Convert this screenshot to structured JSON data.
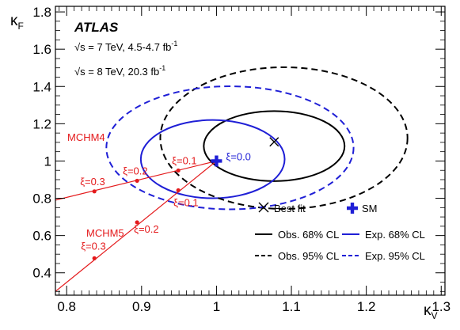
{
  "chart_data": {
    "type": "scatter",
    "title": "",
    "experiment": "ATLAS",
    "energy_lines": [
      {
        "text": "√s = 7 TeV, 4.5-4.7 fb",
        "sup": "-1"
      },
      {
        "text": "√s = 8 TeV, 20.3 fb",
        "sup": "-1"
      }
    ],
    "xlabel": "κ",
    "xlabel_sub": "V",
    "ylabel": "κ",
    "ylabel_sub": "F",
    "xlim": [
      0.785,
      1.305
    ],
    "ylim": [
      0.28,
      1.83
    ],
    "xticks": [
      0.8,
      0.9,
      1.0,
      1.1,
      1.2,
      1.3
    ],
    "xtick_labels": [
      "0.8",
      "0.9",
      "1",
      "1.1",
      "1.2",
      "1.3"
    ],
    "yticks": [
      0.4,
      0.6,
      0.8,
      1.0,
      1.2,
      1.4,
      1.6,
      1.8
    ],
    "ytick_labels": [
      "0.4",
      "0.6",
      "0.8",
      "1",
      "1.2",
      "1.4",
      "1.6",
      "1.8"
    ],
    "grid": false,
    "colors": {
      "observed": "#000000",
      "expected": "#1f1fd6",
      "composite": "#e41a1c"
    },
    "best_fit": {
      "x": 1.077,
      "y": 1.103,
      "label": "Best fit"
    },
    "sm_point": {
      "x": 1.0,
      "y": 1.0,
      "label": "SM",
      "xi_label": "ξ=0.0"
    },
    "contours": [
      {
        "name": "Obs. 68% CL",
        "color": "#000000",
        "dash": "solid",
        "cx": 1.077,
        "cy": 1.08,
        "rx": 0.094,
        "ry": 0.188
      },
      {
        "name": "Exp. 68% CL",
        "color": "#1f1fd6",
        "dash": "solid",
        "cx": 0.995,
        "cy": 1.01,
        "rx": 0.096,
        "ry": 0.21
      },
      {
        "name": "Obs. 95% CL",
        "color": "#000000",
        "dash": "dashed",
        "cx": 1.09,
        "cy": 1.123,
        "rx": 0.165,
        "ry": 0.38
      },
      {
        "name": "Exp. 95% CL",
        "color": "#1f1fd6",
        "dash": "dashed",
        "cx": 1.018,
        "cy": 1.071,
        "rx": 0.165,
        "ry": 0.33
      }
    ],
    "models": [
      {
        "name": "MCHM4",
        "line": [
          [
            0.785,
            0.79
          ],
          [
            1.0,
            1.0
          ]
        ],
        "points": [
          {
            "x": 0.837,
            "y": 0.837,
            "label": "ξ=0.3"
          },
          {
            "x": 0.894,
            "y": 0.894,
            "label": "ξ=0.2"
          },
          {
            "x": 0.949,
            "y": 0.949,
            "label": "ξ=0.1"
          }
        ]
      },
      {
        "name": "MCHM5",
        "line": [
          [
            0.785,
            0.3
          ],
          [
            1.0,
            1.0
          ]
        ],
        "points": [
          {
            "x": 0.837,
            "y": 0.478,
            "label": "ξ=0.3"
          },
          {
            "x": 0.894,
            "y": 0.671,
            "label": "ξ=0.2"
          },
          {
            "x": 0.949,
            "y": 0.843,
            "label": "ξ=0.1"
          }
        ]
      }
    ],
    "legend_position": "bottom-right"
  }
}
